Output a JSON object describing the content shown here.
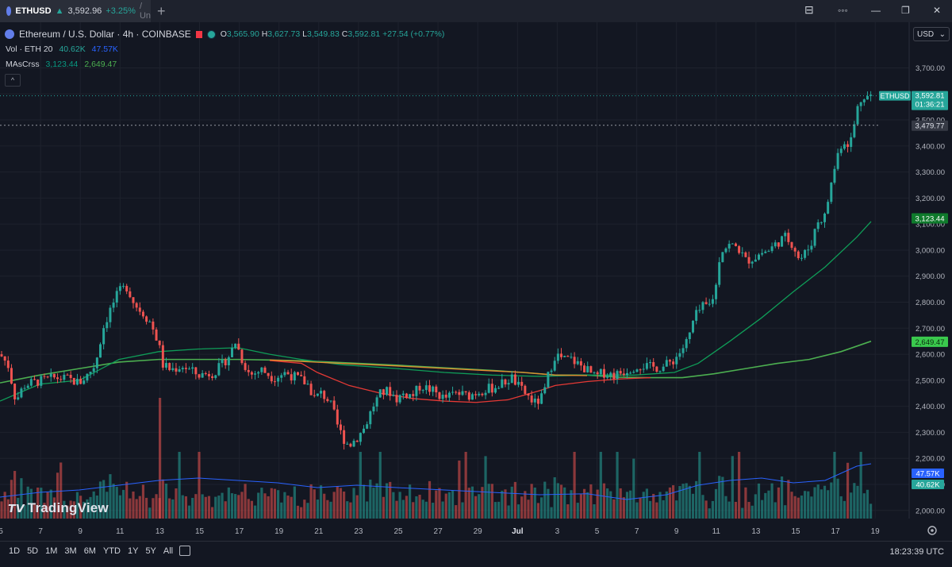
{
  "window": {
    "tab_symbol": "ETHUSD",
    "tab_arrow": "▲",
    "tab_price": "3,592.96",
    "tab_change": "+3.25%",
    "tab_cut": "/ Un",
    "new_tab": "+",
    "btn_layout": "⊟",
    "btn_more": "◦◦◦",
    "btn_min": "—",
    "btn_max": "❐",
    "btn_close": "✕"
  },
  "header": {
    "instrument": "Ethereum / U.S. Dollar · 4h · COINBASE",
    "o_label": "O",
    "o": "3,565.90",
    "h_label": "H",
    "h": "3,627.73",
    "l_label": "L",
    "l": "3,549.83",
    "c_label": "C",
    "c": "3,592.81",
    "change": "+27.54 (+0.77%)"
  },
  "indicators": {
    "vol_label": "Vol · ETH 20",
    "vol_v1": "40.62K",
    "vol_v2": "47.57K",
    "ma_label": "MAsCrss",
    "ma_v1": "3,123.44",
    "ma_v2": "2,649.47",
    "collapse": "^"
  },
  "currency": "USD",
  "price_axis": {
    "ticks": [
      "3,700.00",
      "3,600.00",
      "3,500.00",
      "3,400.00",
      "3,300.00",
      "3,200.00",
      "3,100.00",
      "3,000.00",
      "2,900.00",
      "2,800.00",
      "2,700.00",
      "2,600.00",
      "2,500.00",
      "2,400.00",
      "2,300.00",
      "2,200.00",
      "2,100.00",
      "2,000.00"
    ],
    "labels": {
      "last_symbol": "ETHUSD",
      "last_price": "3,592.81",
      "countdown": "01:36:21",
      "prev_close": "3,479.77",
      "ma_fast": "3,123.44",
      "ma_slow": "2,649.47",
      "vol_ma": "47.57K",
      "vol": "40.62K"
    }
  },
  "time_axis": {
    "labels": [
      "5",
      "7",
      "9",
      "11",
      "13",
      "15",
      "17",
      "19",
      "21",
      "23",
      "25",
      "27",
      "29",
      "Jul",
      "3",
      "5",
      "7",
      "9",
      "11",
      "13",
      "15",
      "17",
      "19"
    ]
  },
  "watermark": "TradingView",
  "bottom": {
    "ranges": [
      "1D",
      "5D",
      "1M",
      "3M",
      "6M",
      "YTD",
      "1Y",
      "5Y",
      "All"
    ],
    "clock": "18:23:39 UTC"
  },
  "colors": {
    "up": "#26a69a",
    "down": "#ef5350",
    "ma_fast": "#0f9d58",
    "ma_slow": "#4caf50",
    "ma_red": "#e53935",
    "ma_orange": "#e58b2e",
    "vol_ma": "#2962ff"
  },
  "chart_data": {
    "type": "candlestick",
    "symbol": "ETHUSD",
    "timeframe": "4h",
    "y_range": [
      1950,
      3760
    ],
    "anchors": [
      [
        0,
        2600
      ],
      [
        10,
        2560
      ],
      [
        20,
        2420
      ],
      [
        30,
        2480
      ],
      [
        40,
        2490
      ],
      [
        55,
        2500
      ],
      [
        70,
        2510
      ],
      [
        85,
        2505
      ],
      [
        100,
        2490
      ],
      [
        110,
        2520
      ],
      [
        120,
        2560
      ],
      [
        130,
        2700
      ],
      [
        140,
        2780
      ],
      [
        150,
        2840
      ],
      [
        160,
        2860
      ],
      [
        170,
        2790
      ],
      [
        180,
        2760
      ],
      [
        190,
        2720
      ],
      [
        200,
        2640
      ],
      [
        205,
        2560
      ],
      [
        215,
        2540
      ],
      [
        230,
        2555
      ],
      [
        250,
        2520
      ],
      [
        270,
        2530
      ],
      [
        280,
        2560
      ],
      [
        290,
        2600
      ],
      [
        297,
        2650
      ],
      [
        305,
        2580
      ],
      [
        315,
        2520
      ],
      [
        330,
        2540
      ],
      [
        345,
        2510
      ],
      [
        360,
        2530
      ],
      [
        380,
        2500
      ],
      [
        390,
        2480
      ],
      [
        395,
        2430
      ],
      [
        405,
        2450
      ],
      [
        415,
        2420
      ],
      [
        420,
        2380
      ],
      [
        425,
        2330
      ],
      [
        432,
        2280
      ],
      [
        440,
        2250
      ],
      [
        450,
        2280
      ],
      [
        460,
        2320
      ],
      [
        470,
        2400
      ],
      [
        480,
        2450
      ],
      [
        490,
        2460
      ],
      [
        500,
        2430
      ],
      [
        510,
        2450
      ],
      [
        520,
        2440
      ],
      [
        530,
        2480
      ],
      [
        545,
        2460
      ],
      [
        560,
        2430
      ],
      [
        575,
        2450
      ],
      [
        590,
        2440
      ],
      [
        605,
        2460
      ],
      [
        620,
        2470
      ],
      [
        635,
        2490
      ],
      [
        645,
        2510
      ],
      [
        655,
        2470
      ],
      [
        665,
        2440
      ],
      [
        675,
        2410
      ],
      [
        685,
        2440
      ],
      [
        692,
        2530
      ],
      [
        700,
        2600
      ],
      [
        710,
        2580
      ],
      [
        720,
        2580
      ],
      [
        730,
        2560
      ],
      [
        740,
        2540
      ],
      [
        750,
        2510
      ],
      [
        760,
        2530
      ],
      [
        775,
        2520
      ],
      [
        790,
        2540
      ],
      [
        805,
        2560
      ],
      [
        820,
        2550
      ],
      [
        835,
        2550
      ],
      [
        850,
        2580
      ],
      [
        860,
        2620
      ],
      [
        868,
        2660
      ],
      [
        875,
        2740
      ],
      [
        885,
        2780
      ],
      [
        895,
        2790
      ],
      [
        902,
        2850
      ],
      [
        908,
        3000
      ],
      [
        920,
        3020
      ],
      [
        930,
        3010
      ],
      [
        940,
        2960
      ],
      [
        950,
        2970
      ],
      [
        960,
        2990
      ],
      [
        970,
        3000
      ],
      [
        980,
        3030
      ],
      [
        990,
        3050
      ],
      [
        1000,
        3020
      ],
      [
        1008,
        2960
      ],
      [
        1015,
        2990
      ],
      [
        1022,
        3020
      ],
      [
        1030,
        3110
      ],
      [
        1040,
        3130
      ],
      [
        1046,
        3230
      ],
      [
        1055,
        3360
      ],
      [
        1062,
        3420
      ],
      [
        1068,
        3410
      ],
      [
        1074,
        3430
      ],
      [
        1080,
        3540
      ],
      [
        1088,
        3600
      ],
      [
        1094,
        3590
      ],
      [
        1100,
        3593
      ]
    ],
    "volume_range": [
      0,
      300
    ],
    "ma_fast_path": [
      [
        0,
        2420
      ],
      [
        50,
        2485
      ],
      [
        100,
        2500
      ],
      [
        150,
        2580
      ],
      [
        200,
        2610
      ],
      [
        250,
        2620
      ],
      [
        300,
        2625
      ],
      [
        340,
        2600
      ],
      [
        380,
        2580
      ],
      [
        430,
        2560
      ],
      [
        500,
        2545
      ],
      [
        560,
        2530
      ],
      [
        620,
        2520
      ],
      [
        680,
        2515
      ],
      [
        740,
        2520
      ],
      [
        800,
        2520
      ],
      [
        850,
        2530
      ],
      [
        880,
        2565
      ],
      [
        920,
        2650
      ],
      [
        960,
        2740
      ],
      [
        1000,
        2840
      ],
      [
        1040,
        2935
      ],
      [
        1080,
        3050
      ],
      [
        1098,
        3110
      ]
    ],
    "ma_slow_path": [
      [
        0,
        2490
      ],
      [
        50,
        2520
      ],
      [
        100,
        2545
      ],
      [
        150,
        2570
      ],
      [
        200,
        2580
      ],
      [
        250,
        2580
      ],
      [
        300,
        2580
      ],
      [
        340,
        2578
      ],
      [
        380,
        2575
      ],
      [
        430,
        2568
      ],
      [
        500,
        2558
      ],
      [
        560,
        2548
      ],
      [
        620,
        2538
      ],
      [
        660,
        2530
      ],
      [
        700,
        2520
      ],
      [
        740,
        2520
      ],
      [
        780,
        2512
      ],
      [
        820,
        2510
      ],
      [
        860,
        2510
      ],
      [
        900,
        2525
      ],
      [
        940,
        2545
      ],
      [
        980,
        2565
      ],
      [
        1020,
        2580
      ],
      [
        1060,
        2610
      ],
      [
        1098,
        2650
      ]
    ],
    "ma_red_path": [
      [
        340,
        2576
      ],
      [
        380,
        2565
      ],
      [
        400,
        2530
      ],
      [
        440,
        2480
      ],
      [
        480,
        2450
      ],
      [
        520,
        2430
      ],
      [
        560,
        2420
      ],
      [
        600,
        2415
      ],
      [
        640,
        2425
      ],
      [
        680,
        2460
      ],
      [
        700,
        2480
      ],
      [
        740,
        2495
      ],
      [
        780,
        2505
      ],
      [
        820,
        2510
      ]
    ],
    "vol_ma_path": [
      [
        0,
        45
      ],
      [
        50,
        55
      ],
      [
        100,
        60
      ],
      [
        150,
        70
      ],
      [
        200,
        80
      ],
      [
        250,
        85
      ],
      [
        300,
        80
      ],
      [
        350,
        75
      ],
      [
        400,
        65
      ],
      [
        450,
        70
      ],
      [
        500,
        65
      ],
      [
        560,
        60
      ],
      [
        620,
        55
      ],
      [
        680,
        50
      ],
      [
        740,
        52
      ],
      [
        790,
        40
      ],
      [
        840,
        50
      ],
      [
        880,
        70
      ],
      [
        920,
        80
      ],
      [
        960,
        85
      ],
      [
        1000,
        75
      ],
      [
        1040,
        80
      ],
      [
        1080,
        110
      ],
      [
        1098,
        115
      ]
    ]
  }
}
